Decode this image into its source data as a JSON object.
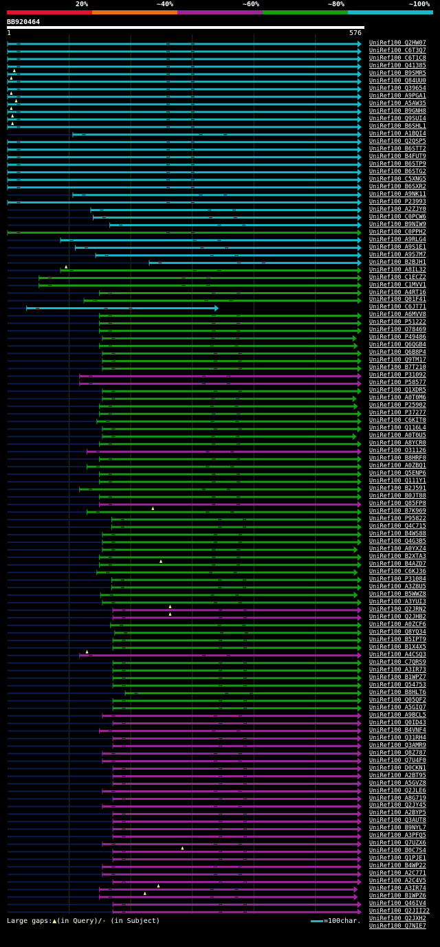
{
  "legend": {
    "labels": [
      "20%",
      "~40%",
      "~60%",
      "~80%",
      "~100%"
    ],
    "colors": [
      "#e8102c",
      "#e87018",
      "#982898",
      "#1a9818",
      "#18b8c8"
    ]
  },
  "query": {
    "title": "BB920464",
    "start": "1",
    "end": "576",
    "length": 576
  },
  "colors": {
    "cyan": "#18b8c8",
    "green": "#1a9818",
    "magenta": "#982898",
    "line": "#0c1a50",
    "tri": "#ffff99",
    "grid": "#2a3a1a"
  },
  "hits": [
    {
      "name": "UniRef100_Q2HW07",
      "color": "cyan",
      "start": 1,
      "end": 576,
      "ds": 1,
      "de": 576,
      "tri": null
    },
    {
      "name": "UniRef100_C6T3Q7",
      "color": "cyan",
      "start": 1,
      "end": 576,
      "ds": 1,
      "de": 576,
      "tri": null
    },
    {
      "name": "UniRef100_C6T1C8",
      "color": "cyan",
      "start": 1,
      "end": 576,
      "ds": 1,
      "de": 576,
      "tri": null
    },
    {
      "name": "UniRef100_Q41385",
      "color": "cyan",
      "start": 1,
      "end": 576,
      "ds": 1,
      "de": 576,
      "tri": null
    },
    {
      "name": "UniRef100_B9SMR5",
      "color": "cyan",
      "start": 1,
      "end": 576,
      "ds": 1,
      "de": 576,
      "tri": 12
    },
    {
      "name": "UniRef100_Q84UU0",
      "color": "cyan",
      "start": 1,
      "end": 576,
      "ds": 1,
      "de": 576,
      "tri": 7
    },
    {
      "name": "UniRef100_Q39654",
      "color": "cyan",
      "start": 1,
      "end": 576,
      "ds": 1,
      "de": 576,
      "tri": null
    },
    {
      "name": "UniRef100_A9PGA1",
      "color": "cyan",
      "start": 1,
      "end": 576,
      "ds": 1,
      "de": 576,
      "tri": 7
    },
    {
      "name": "UniRef100_A5AW35",
      "color": "cyan",
      "start": 1,
      "end": 576,
      "ds": 1,
      "de": 576,
      "tri": 15
    },
    {
      "name": "UniRef100_B9GNH8",
      "color": "cyan",
      "start": 1,
      "end": 576,
      "ds": 1,
      "de": 576,
      "tri": 7
    },
    {
      "name": "UniRef100_Q9SUI4",
      "color": "cyan",
      "start": 1,
      "end": 576,
      "ds": 1,
      "de": 576,
      "tri": 9
    },
    {
      "name": "UniRef100_B6SHL1",
      "color": "cyan",
      "start": 1,
      "end": 576,
      "ds": 1,
      "de": 576,
      "tri": 9
    },
    {
      "name": "UniRef100_A1BQI4",
      "color": "cyan",
      "start": 107,
      "end": 576,
      "ds": 1,
      "de": 576,
      "tri": null
    },
    {
      "name": "UniRef100_Q2QSP5",
      "color": "cyan",
      "start": 1,
      "end": 576,
      "ds": 1,
      "de": 576,
      "tri": null
    },
    {
      "name": "UniRef100_B6STT2",
      "color": "cyan",
      "start": 1,
      "end": 576,
      "ds": 1,
      "de": 576,
      "tri": null
    },
    {
      "name": "UniRef100_B4FUT9",
      "color": "cyan",
      "start": 1,
      "end": 576,
      "ds": 1,
      "de": 576,
      "tri": null
    },
    {
      "name": "UniRef100_B6STP9",
      "color": "cyan",
      "start": 1,
      "end": 576,
      "ds": 1,
      "de": 576,
      "tri": null
    },
    {
      "name": "UniRef100_B6STG2",
      "color": "cyan",
      "start": 1,
      "end": 576,
      "ds": 1,
      "de": 576,
      "tri": null
    },
    {
      "name": "UniRef100_C5XNG5",
      "color": "cyan",
      "start": 1,
      "end": 576,
      "ds": 1,
      "de": 576,
      "tri": null
    },
    {
      "name": "UniRef100_B6SXR2",
      "color": "cyan",
      "start": 1,
      "end": 576,
      "ds": 1,
      "de": 576,
      "tri": null
    },
    {
      "name": "UniRef100_A9NK11",
      "color": "cyan",
      "start": 107,
      "end": 576,
      "ds": 1,
      "de": 576,
      "tri": null
    },
    {
      "name": "UniRef100_P23993",
      "color": "cyan",
      "start": 1,
      "end": 576,
      "ds": 1,
      "de": 576,
      "tri": null
    },
    {
      "name": "UniRef100_A2ZJY0",
      "color": "cyan",
      "start": 136,
      "end": 576,
      "ds": 1,
      "de": 576,
      "tri": null
    },
    {
      "name": "UniRef100_C0PCW6",
      "color": "cyan",
      "start": 140,
      "end": 576,
      "ds": 1,
      "de": 576,
      "tri": null
    },
    {
      "name": "UniRef100_B9NIW9",
      "color": "cyan",
      "start": 167,
      "end": 576,
      "ds": 1,
      "de": 576,
      "tri": null
    },
    {
      "name": "UniRef100_C0PPH2",
      "color": "green",
      "start": 1,
      "end": 576,
      "ds": 1,
      "de": 576,
      "tri": null
    },
    {
      "name": "UniRef100_A9RLG4",
      "color": "cyan",
      "start": 87,
      "end": 576,
      "ds": 1,
      "de": 576,
      "tri": null
    },
    {
      "name": "UniRef100_A9S1E1",
      "color": "cyan",
      "start": 111,
      "end": 576,
      "ds": 1,
      "de": 576,
      "tri": null
    },
    {
      "name": "UniRef100_A9S7M7",
      "color": "cyan",
      "start": 144,
      "end": 576,
      "ds": 1,
      "de": 576,
      "tri": null
    },
    {
      "name": "UniRef100_B2BJH1",
      "color": "cyan",
      "start": 231,
      "end": 576,
      "ds": 1,
      "de": 576,
      "tri": null
    },
    {
      "name": "UniRef100_A8IL32",
      "color": "green",
      "start": 87,
      "end": 576,
      "ds": 1,
      "de": 576,
      "tri": 96
    },
    {
      "name": "UniRef100_C1ECZ2",
      "color": "green",
      "start": 52,
      "end": 576,
      "ds": 1,
      "de": 576,
      "tri": null
    },
    {
      "name": "UniRef100_C1MVV1",
      "color": "green",
      "start": 52,
      "end": 576,
      "ds": 1,
      "de": 576,
      "tri": null
    },
    {
      "name": "UniRef100_A4RT16",
      "color": "green",
      "start": 150,
      "end": 576,
      "ds": 1,
      "de": 576,
      "tri": null
    },
    {
      "name": "UniRef100_Q01F41",
      "color": "green",
      "start": 125,
      "end": 576,
      "ds": 1,
      "de": 576,
      "tri": null
    },
    {
      "name": "UniRef100_C6JT71",
      "color": "cyan",
      "start": 32,
      "end": 344,
      "ds": 32,
      "de": 344,
      "tri": null
    },
    {
      "name": "UniRef100_A6MVV8",
      "color": "green",
      "start": 150,
      "end": 576,
      "ds": 1,
      "de": 576,
      "tri": null
    },
    {
      "name": "UniRef100_P51222",
      "color": "green",
      "start": 150,
      "end": 576,
      "ds": 1,
      "de": 576,
      "tri": null
    },
    {
      "name": "UniRef100_O78469",
      "color": "green",
      "start": 150,
      "end": 576,
      "ds": 1,
      "de": 576,
      "tri": null
    },
    {
      "name": "UniRef100_P49486",
      "color": "green",
      "start": 155,
      "end": 568,
      "ds": 1,
      "de": 568,
      "tri": null
    },
    {
      "name": "UniRef100_Q6QGB4",
      "color": "green",
      "start": 150,
      "end": 570,
      "ds": 1,
      "de": 570,
      "tri": null
    },
    {
      "name": "UniRef100_Q6B8P4",
      "color": "green",
      "start": 155,
      "end": 576,
      "ds": 1,
      "de": 576,
      "tri": null
    },
    {
      "name": "UniRef100_Q9TM17",
      "color": "green",
      "start": 155,
      "end": 576,
      "ds": 1,
      "de": 576,
      "tri": null
    },
    {
      "name": "UniRef100_B7T210",
      "color": "green",
      "start": 155,
      "end": 576,
      "ds": 1,
      "de": 576,
      "tri": null
    },
    {
      "name": "UniRef100_P31092",
      "color": "magenta",
      "start": 118,
      "end": 576,
      "ds": 1,
      "de": 576,
      "tri": null
    },
    {
      "name": "UniRef100_P58577",
      "color": "magenta",
      "start": 118,
      "end": 576,
      "ds": 1,
      "de": 576,
      "tri": null
    },
    {
      "name": "UniRef100_Q1XDR5",
      "color": "green",
      "start": 155,
      "end": 576,
      "ds": 1,
      "de": 576,
      "tri": null
    },
    {
      "name": "UniRef100_A0T0M6",
      "color": "green",
      "start": 155,
      "end": 568,
      "ds": 1,
      "de": 568,
      "tri": null
    },
    {
      "name": "UniRef100_P25902",
      "color": "green",
      "start": 150,
      "end": 570,
      "ds": 1,
      "de": 570,
      "tri": null
    },
    {
      "name": "UniRef100_P37277",
      "color": "green",
      "start": 150,
      "end": 576,
      "ds": 1,
      "de": 576,
      "tri": null
    },
    {
      "name": "UniRef100_C6KIT0",
      "color": "green",
      "start": 146,
      "end": 576,
      "ds": 1,
      "de": 576,
      "tri": null
    },
    {
      "name": "UniRef100_Q116L4",
      "color": "green",
      "start": 155,
      "end": 576,
      "ds": 1,
      "de": 576,
      "tri": null
    },
    {
      "name": "UniRef100_A0T0U5",
      "color": "green",
      "start": 155,
      "end": 568,
      "ds": 1,
      "de": 568,
      "tri": null
    },
    {
      "name": "UniRef100_A8YCR0",
      "color": "green",
      "start": 150,
      "end": 576,
      "ds": 1,
      "de": 576,
      "tri": null
    },
    {
      "name": "UniRef100_O31126",
      "color": "magenta",
      "start": 130,
      "end": 576,
      "ds": 1,
      "de": 576,
      "tri": null
    },
    {
      "name": "UniRef100_B8HRF0",
      "color": "green",
      "start": 150,
      "end": 576,
      "ds": 1,
      "de": 576,
      "tri": null
    },
    {
      "name": "UniRef100_A0ZBQ1",
      "color": "green",
      "start": 130,
      "end": 576,
      "ds": 1,
      "de": 576,
      "tri": null
    },
    {
      "name": "UniRef100_Q5ENP6",
      "color": "green",
      "start": 150,
      "end": 576,
      "ds": 1,
      "de": 576,
      "tri": null
    },
    {
      "name": "UniRef100_Q111Y1",
      "color": "green",
      "start": 150,
      "end": 576,
      "ds": 1,
      "de": 576,
      "tri": null
    },
    {
      "name": "UniRef100_B2J591",
      "color": "green",
      "start": 118,
      "end": 576,
      "ds": 1,
      "de": 576,
      "tri": null
    },
    {
      "name": "UniRef100_B0JT88",
      "color": "green",
      "start": 150,
      "end": 576,
      "ds": 1,
      "de": 576,
      "tri": null
    },
    {
      "name": "UniRef100_Q85FP8",
      "color": "magenta",
      "start": 150,
      "end": 576,
      "ds": 1,
      "de": 576,
      "tri": null
    },
    {
      "name": "UniRef100_B7K969",
      "color": "green",
      "start": 130,
      "end": 576,
      "ds": 1,
      "de": 576,
      "tri": 237
    },
    {
      "name": "UniRef100_P95822",
      "color": "green",
      "start": 170,
      "end": 576,
      "ds": 1,
      "de": 576,
      "tri": null
    },
    {
      "name": "UniRef100_Q4C715",
      "color": "green",
      "start": 170,
      "end": 576,
      "ds": 1,
      "de": 576,
      "tri": null
    },
    {
      "name": "UniRef100_B4WS88",
      "color": "green",
      "start": 155,
      "end": 576,
      "ds": 1,
      "de": 576,
      "tri": null
    },
    {
      "name": "UniRef100_Q4G3B5",
      "color": "green",
      "start": 155,
      "end": 576,
      "ds": 1,
      "de": 576,
      "tri": null
    },
    {
      "name": "UniRef100_A0YXZ4",
      "color": "green",
      "start": 155,
      "end": 570,
      "ds": 1,
      "de": 570,
      "tri": null
    },
    {
      "name": "UniRef100_B2XTA3",
      "color": "green",
      "start": 150,
      "end": 576,
      "ds": 1,
      "de": 576,
      "tri": null
    },
    {
      "name": "UniRef100_B4AZD7",
      "color": "green",
      "start": 150,
      "end": 576,
      "ds": 1,
      "de": 576,
      "tri": 250
    },
    {
      "name": "UniRef100_C6KJ36",
      "color": "green",
      "start": 146,
      "end": 570,
      "ds": 1,
      "de": 570,
      "tri": null
    },
    {
      "name": "UniRef100_P31084",
      "color": "green",
      "start": 170,
      "end": 576,
      "ds": 1,
      "de": 576,
      "tri": null
    },
    {
      "name": "UniRef100_A3Z8U5",
      "color": "green",
      "start": 170,
      "end": 576,
      "ds": 1,
      "de": 576,
      "tri": null
    },
    {
      "name": "UniRef100_B5WWZ8",
      "color": "green",
      "start": 152,
      "end": 570,
      "ds": 1,
      "de": 570,
      "tri": null
    },
    {
      "name": "UniRef100_A3YUI3",
      "color": "green",
      "start": 155,
      "end": 576,
      "ds": 1,
      "de": 576,
      "tri": null
    },
    {
      "name": "UniRef100_Q2JRN2",
      "color": "magenta",
      "start": 172,
      "end": 576,
      "ds": 1,
      "de": 576,
      "tri": 265
    },
    {
      "name": "UniRef100_Q2JHB2",
      "color": "magenta",
      "start": 172,
      "end": 576,
      "ds": 1,
      "de": 576,
      "tri": 265
    },
    {
      "name": "UniRef100_A0ZCF6",
      "color": "green",
      "start": 168,
      "end": 576,
      "ds": 1,
      "de": 576,
      "tri": null
    },
    {
      "name": "UniRef100_Q8YQ34",
      "color": "green",
      "start": 175,
      "end": 576,
      "ds": 1,
      "de": 576,
      "tri": null
    },
    {
      "name": "UniRef100_B5IPT9",
      "color": "green",
      "start": 172,
      "end": 576,
      "ds": 1,
      "de": 576,
      "tri": null
    },
    {
      "name": "UniRef100_B1X4X5",
      "color": "green",
      "start": 172,
      "end": 576,
      "ds": 1,
      "de": 576,
      "tri": null
    },
    {
      "name": "UniRef100_A4CSQ3",
      "color": "magenta",
      "start": 118,
      "end": 576,
      "ds": 1,
      "de": 576,
      "tri": 130
    },
    {
      "name": "UniRef100_C7QRS9",
      "color": "green",
      "start": 172,
      "end": 576,
      "ds": 1,
      "de": 576,
      "tri": null
    },
    {
      "name": "UniRef100_A3IR73",
      "color": "green",
      "start": 172,
      "end": 576,
      "ds": 1,
      "de": 576,
      "tri": null
    },
    {
      "name": "UniRef100_B1WPZ7",
      "color": "green",
      "start": 172,
      "end": 576,
      "ds": 1,
      "de": 576,
      "tri": null
    },
    {
      "name": "UniRef100_Q54753",
      "color": "green",
      "start": 172,
      "end": 576,
      "ds": 1,
      "de": 576,
      "tri": null
    },
    {
      "name": "UniRef100_B8HLT6",
      "color": "green",
      "start": 192,
      "end": 576,
      "ds": 1,
      "de": 576,
      "tri": null
    },
    {
      "name": "UniRef100_Q05QF2",
      "color": "green",
      "start": 172,
      "end": 576,
      "ds": 1,
      "de": 576,
      "tri": null
    },
    {
      "name": "UniRef100_A5GIQ7",
      "color": "green",
      "start": 172,
      "end": 576,
      "ds": 1,
      "de": 576,
      "tri": null
    },
    {
      "name": "UniRef100_A9BCL5",
      "color": "magenta",
      "start": 155,
      "end": 576,
      "ds": 1,
      "de": 576,
      "tri": null
    },
    {
      "name": "UniRef100_Q0ID43",
      "color": "magenta",
      "start": 172,
      "end": 576,
      "ds": 1,
      "de": 576,
      "tri": null
    },
    {
      "name": "UniRef100_B4VNF4",
      "color": "magenta",
      "start": 150,
      "end": 576,
      "ds": 1,
      "de": 576,
      "tri": null
    },
    {
      "name": "UniRef100_Q31RH4",
      "color": "magenta",
      "start": 172,
      "end": 576,
      "ds": 1,
      "de": 576,
      "tri": null
    },
    {
      "name": "UniRef100_Q3AMR9",
      "color": "magenta",
      "start": 172,
      "end": 576,
      "ds": 1,
      "de": 576,
      "tri": null
    },
    {
      "name": "UniRef100_Q8Z787",
      "color": "magenta",
      "start": 155,
      "end": 576,
      "ds": 1,
      "de": 576,
      "tri": null
    },
    {
      "name": "UniRef100_Q7U4F0",
      "color": "magenta",
      "start": 155,
      "end": 576,
      "ds": 1,
      "de": 576,
      "tri": null
    },
    {
      "name": "UniRef100_D0CKN1",
      "color": "magenta",
      "start": 172,
      "end": 576,
      "ds": 1,
      "de": 576,
      "tri": null
    },
    {
      "name": "UniRef100_A2BT95",
      "color": "magenta",
      "start": 172,
      "end": 576,
      "ds": 1,
      "de": 576,
      "tri": null
    },
    {
      "name": "UniRef100_A5GVZ8",
      "color": "magenta",
      "start": 172,
      "end": 576,
      "ds": 1,
      "de": 576,
      "tri": null
    },
    {
      "name": "UniRef100_Q2JLE6",
      "color": "magenta",
      "start": 155,
      "end": 576,
      "ds": 1,
      "de": 576,
      "tri": null
    },
    {
      "name": "UniRef100_A8G719",
      "color": "magenta",
      "start": 172,
      "end": 576,
      "ds": 1,
      "de": 576,
      "tri": null
    },
    {
      "name": "UniRef100_Q2JY45",
      "color": "magenta",
      "start": 155,
      "end": 576,
      "ds": 1,
      "de": 576,
      "tri": null
    },
    {
      "name": "UniRef100_A2BYP5",
      "color": "magenta",
      "start": 172,
      "end": 576,
      "ds": 1,
      "de": 576,
      "tri": null
    },
    {
      "name": "UniRef100_Q3AUT8",
      "color": "magenta",
      "start": 172,
      "end": 576,
      "ds": 1,
      "de": 576,
      "tri": null
    },
    {
      "name": "UniRef100_B9NYL7",
      "color": "magenta",
      "start": 172,
      "end": 576,
      "ds": 1,
      "de": 576,
      "tri": null
    },
    {
      "name": "UniRef100_A3PFQ5",
      "color": "magenta",
      "start": 172,
      "end": 576,
      "ds": 1,
      "de": 576,
      "tri": null
    },
    {
      "name": "UniRef100_Q7UZX6",
      "color": "magenta",
      "start": 155,
      "end": 576,
      "ds": 1,
      "de": 576,
      "tri": null
    },
    {
      "name": "UniRef100_B0C7S4",
      "color": "magenta",
      "start": 172,
      "end": 576,
      "ds": 1,
      "de": 576,
      "tri": 285
    },
    {
      "name": "UniRef100_Q1PJE1",
      "color": "magenta",
      "start": 172,
      "end": 576,
      "ds": 1,
      "de": 576,
      "tri": null
    },
    {
      "name": "UniRef100_B4WP22",
      "color": "magenta",
      "start": 155,
      "end": 576,
      "ds": 1,
      "de": 576,
      "tri": null
    },
    {
      "name": "UniRef100_A2C771",
      "color": "magenta",
      "start": 155,
      "end": 576,
      "ds": 1,
      "de": 576,
      "tri": null
    },
    {
      "name": "UniRef100_A2C4V5",
      "color": "magenta",
      "start": 172,
      "end": 576,
      "ds": 1,
      "de": 576,
      "tri": null
    },
    {
      "name": "UniRef100_A3IR74",
      "color": "magenta",
      "start": 150,
      "end": 570,
      "ds": 1,
      "de": 570,
      "tri": 246
    },
    {
      "name": "UniRef100_B1WPZ6",
      "color": "magenta",
      "start": 150,
      "end": 570,
      "ds": 1,
      "de": 570,
      "tri": 224
    },
    {
      "name": "UniRef100_Q46IV4",
      "color": "magenta",
      "start": 172,
      "end": 576,
      "ds": 1,
      "de": 576,
      "tri": null
    },
    {
      "name": "UniRef100_Q2JII22",
      "color": "magenta",
      "start": 172,
      "end": 576,
      "ds": 1,
      "de": 576,
      "tri": null
    },
    {
      "name": "UniRef100_Q2JXH2",
      "color": "magenta",
      "start": 172,
      "end": 576,
      "ds": 1,
      "de": 576,
      "tri": null
    },
    {
      "name": "UniRef100_Q7NIE7",
      "color": "magenta",
      "start": 172,
      "end": 576,
      "ds": 1,
      "de": 576,
      "tri": null
    }
  ],
  "footer": {
    "large_gaps_prefix": "Large gaps:",
    "tri_glyph": "▲",
    "query_note": "(in Query)/- (in Subject)",
    "scale_label": "=100char."
  }
}
